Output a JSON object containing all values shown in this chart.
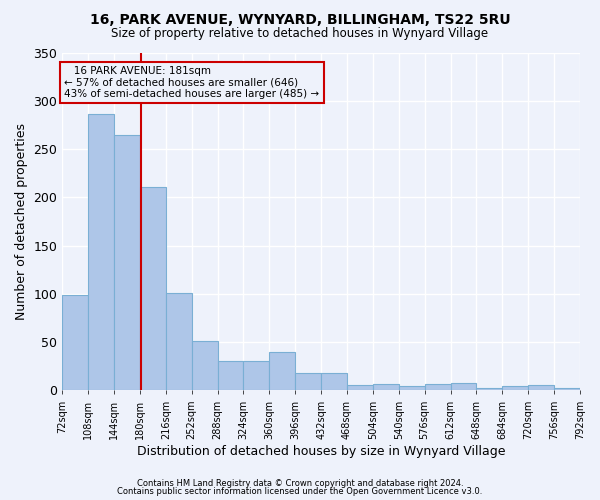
{
  "title1": "16, PARK AVENUE, WYNYARD, BILLINGHAM, TS22 5RU",
  "title2": "Size of property relative to detached houses in Wynyard Village",
  "xlabel": "Distribution of detached houses by size in Wynyard Village",
  "ylabel": "Number of detached properties",
  "footnote1": "Contains HM Land Registry data © Crown copyright and database right 2024.",
  "footnote2": "Contains public sector information licensed under the Open Government Licence v3.0.",
  "annotation_line1": "   16 PARK AVENUE: 181sqm",
  "annotation_line2": "← 57% of detached houses are smaller (646)",
  "annotation_line3": "43% of semi-detached houses are larger (485) →",
  "property_size": 181,
  "bin_edges": [
    72,
    108,
    144,
    180,
    216,
    252,
    288,
    324,
    360,
    396,
    432,
    468,
    504,
    540,
    576,
    612,
    648,
    684,
    720,
    756,
    792
  ],
  "bar_heights": [
    99,
    286,
    265,
    211,
    101,
    51,
    30,
    30,
    40,
    18,
    18,
    6,
    7,
    5,
    7,
    8,
    3,
    5,
    6,
    2,
    4
  ],
  "bar_color": "#aec6e8",
  "bar_edge_color": "#7aafd4",
  "marker_color": "#cc0000",
  "background_color": "#eef2fb",
  "grid_color": "#ffffff",
  "ylim": [
    0,
    350
  ],
  "yticks": [
    0,
    50,
    100,
    150,
    200,
    250,
    300,
    350
  ]
}
